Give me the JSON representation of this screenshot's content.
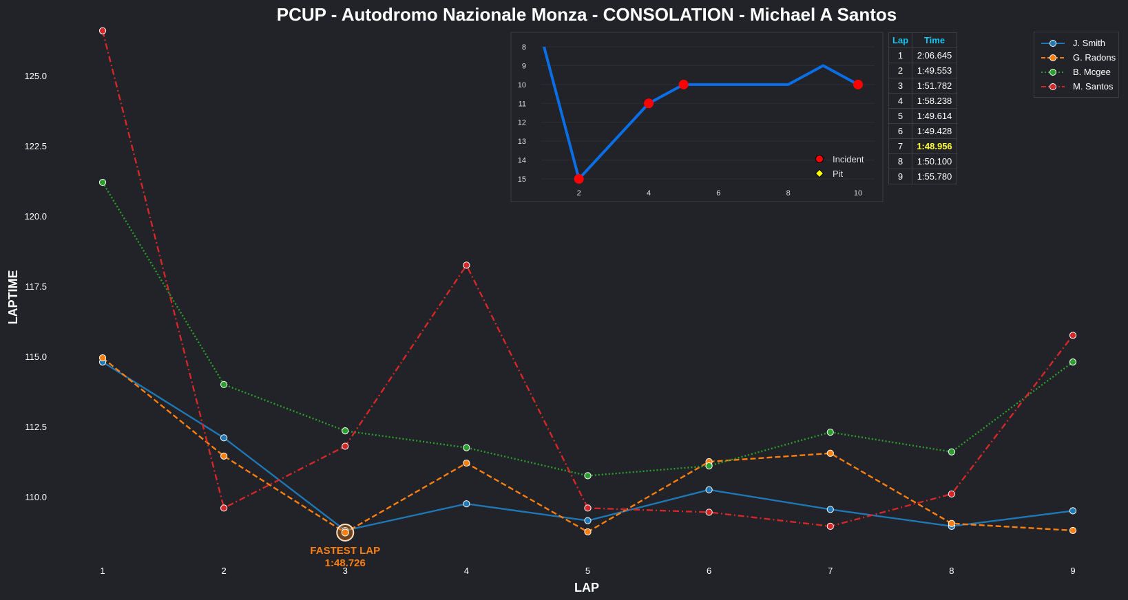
{
  "chart_data": [
    {
      "type": "line",
      "title": "PCUP - Autodromo Nazionale Monza - CONSOLATION - Michael A Santos",
      "xlabel": "LAP",
      "ylabel": "LAPTIME",
      "x": [
        1,
        2,
        3,
        4,
        5,
        6,
        7,
        8,
        9
      ],
      "x_ticks": [
        "1",
        "2",
        "3",
        "4",
        "5",
        "6",
        "7",
        "8",
        "9"
      ],
      "ylim": [
        107.8,
        126.6
      ],
      "y_ticks": [
        "110.0",
        "112.5",
        "115.0",
        "117.5",
        "120.0",
        "122.5",
        "125.0"
      ],
      "grid": false,
      "legend_position": "top-right",
      "series": [
        {
          "name": "J. Smith",
          "color": "#1f77b4",
          "style": "solid",
          "values": [
            114.8,
            112.1,
            108.8,
            109.75,
            109.15,
            110.25,
            109.55,
            108.95,
            109.5
          ]
        },
        {
          "name": "G. Radons",
          "color": "#ff7f0e",
          "style": "dashed",
          "values": [
            114.95,
            111.45,
            108.726,
            111.2,
            108.75,
            111.25,
            111.55,
            109.05,
            108.8
          ]
        },
        {
          "name": "B. Mcgee",
          "color": "#2ca02c",
          "style": "dotted",
          "values": [
            121.2,
            114.0,
            112.35,
            111.75,
            110.75,
            111.1,
            112.3,
            111.6,
            114.8
          ]
        },
        {
          "name": "M. Santos",
          "color": "#d62728",
          "style": "dashdot",
          "values": [
            126.6,
            109.6,
            111.8,
            118.25,
            109.6,
            109.45,
            108.95,
            110.1,
            115.75
          ]
        }
      ],
      "annotations": [
        {
          "text_line1": "FASTEST LAP",
          "text_line2": "1:48.726",
          "x": 3,
          "y": 108.726,
          "color": "#ff7f0e"
        }
      ]
    },
    {
      "type": "line",
      "title": "",
      "x": [
        1,
        2,
        3,
        4,
        5,
        6,
        7,
        8,
        9,
        10
      ],
      "values": [
        8,
        15,
        13,
        11,
        10,
        10,
        10,
        10,
        9,
        10
      ],
      "x_ticks": [
        "2",
        "4",
        "6",
        "8",
        "10"
      ],
      "y_ticks": [
        "8",
        "9",
        "10",
        "11",
        "12",
        "13",
        "14",
        "15"
      ],
      "ylim": [
        15.5,
        7.5
      ],
      "y_inverted": true,
      "line_color": "#0a6fe6",
      "incidents_x": [
        2,
        4,
        5,
        10
      ],
      "incident_color": "#ff0000",
      "pit_color": "#ffff00",
      "legend": {
        "incident_label": "Incident",
        "pit_label": "Pit"
      }
    }
  ],
  "lap_table": {
    "headers": [
      "Lap",
      "Time"
    ],
    "rows": [
      [
        "1",
        "2:06.645"
      ],
      [
        "2",
        "1:49.553"
      ],
      [
        "3",
        "1:51.782"
      ],
      [
        "4",
        "1:58.238"
      ],
      [
        "5",
        "1:49.614"
      ],
      [
        "6",
        "1:49.428"
      ],
      [
        "7",
        "1:48.956"
      ],
      [
        "8",
        "1:50.100"
      ],
      [
        "9",
        "1:55.780"
      ]
    ],
    "best_row": 6,
    "header_color": "#19c5f0",
    "best_color": "#ffff33"
  },
  "colors": {
    "background": "#212328",
    "text": "#ffffff"
  }
}
